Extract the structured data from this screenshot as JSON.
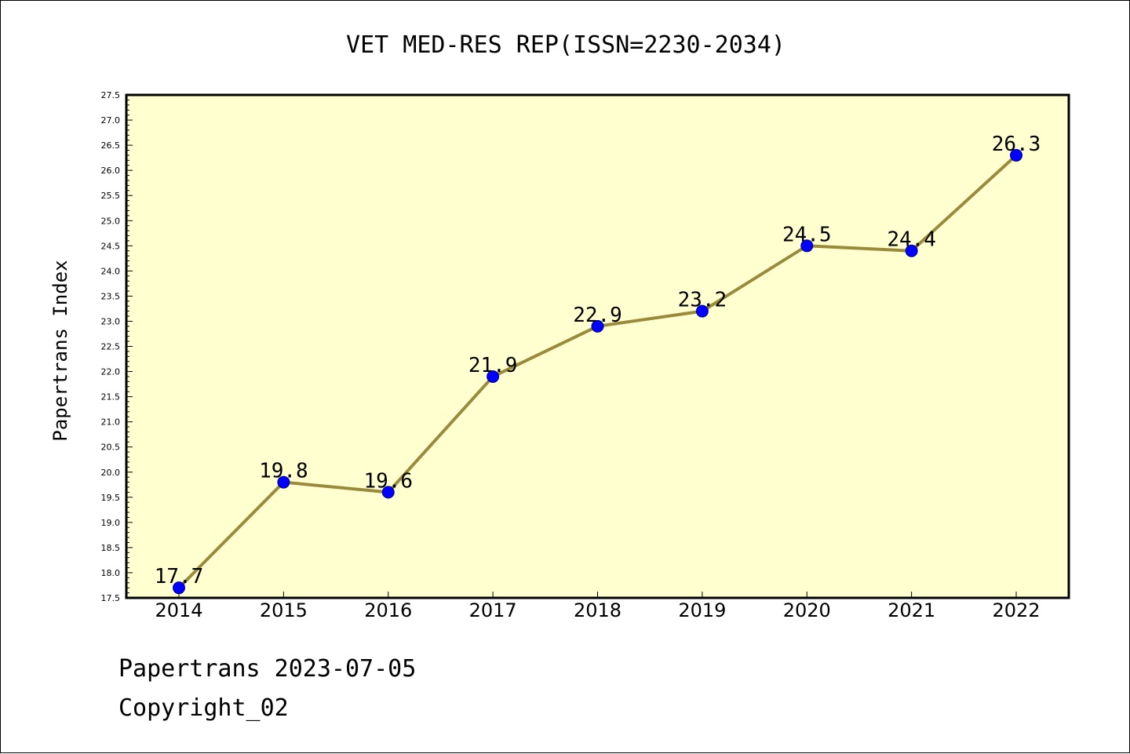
{
  "chart_data": {
    "type": "line",
    "title": "VET MED-RES REP(ISSN=2230-2034)",
    "xlabel": "",
    "ylabel": "Papertrans Index",
    "categories": [
      "2014",
      "2015",
      "2016",
      "2017",
      "2018",
      "2019",
      "2020",
      "2021",
      "2022"
    ],
    "series": [
      {
        "values": [
          17.7,
          19.8,
          19.6,
          21.9,
          22.9,
          23.2,
          24.5,
          24.4,
          26.3
        ]
      }
    ],
    "data_labels": [
      "17.7",
      "19.8",
      "19.6",
      "21.9",
      "22.9",
      "23.2",
      "24.5",
      "24.4",
      "26.3"
    ],
    "ylim": [
      17.5,
      27.5
    ],
    "yticks": [
      "17.5",
      "18.0",
      "18.5",
      "19.0",
      "19.5",
      "20.0",
      "20.5",
      "21.0",
      "21.5",
      "22.0",
      "22.5",
      "23.0",
      "23.5",
      "24.0",
      "24.5",
      "25.0",
      "25.5",
      "26.0",
      "26.5",
      "27.0",
      "27.5"
    ],
    "grid": false,
    "colors": {
      "plot_background": "#ffffd0",
      "line": "#9a8a3c",
      "marker": "#0000ff"
    }
  },
  "footer": {
    "line1": "Papertrans 2023-07-05",
    "line2": "Copyright_02"
  }
}
